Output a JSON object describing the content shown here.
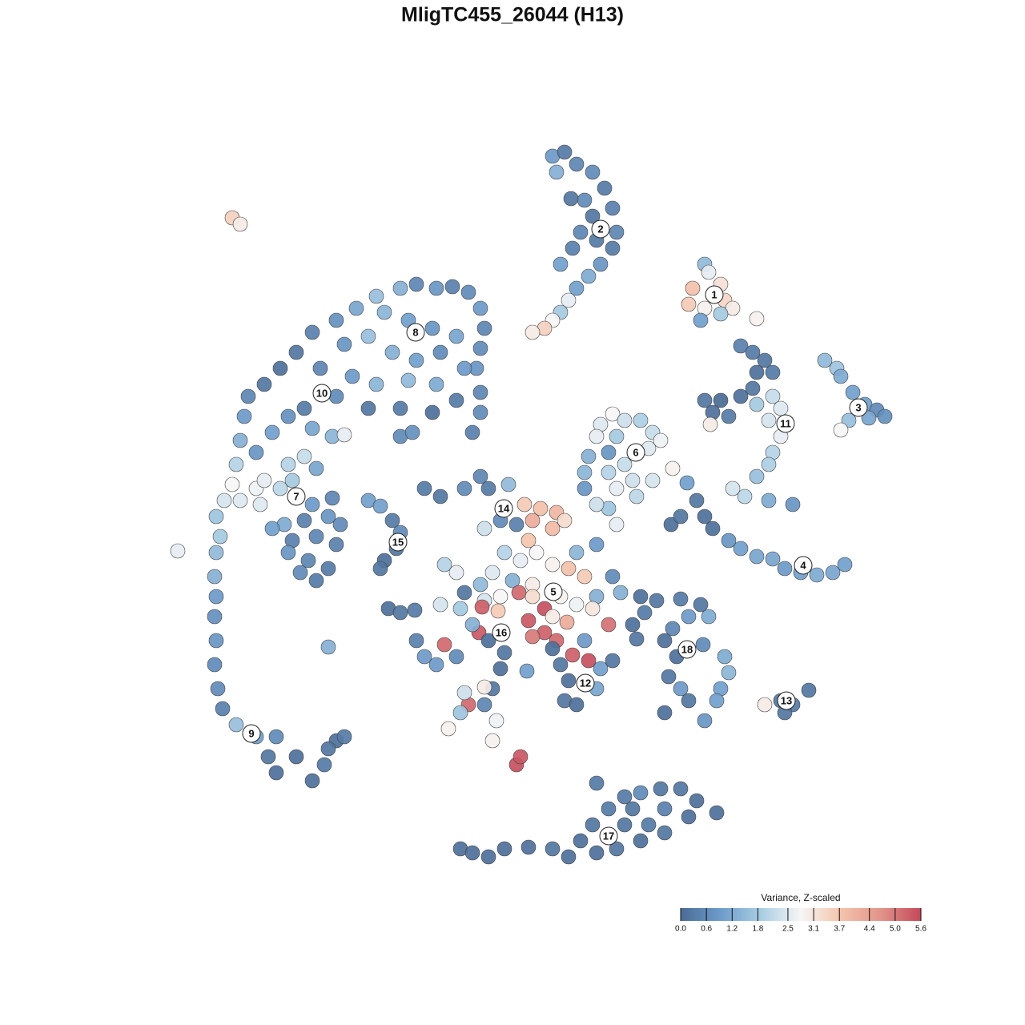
{
  "chart_data": {
    "type": "scatter",
    "title": "MligTC455_26044 (H13)",
    "xlim": [
      -60,
      60
    ],
    "ylim": [
      -60,
      60
    ],
    "series": [
      {
        "x": [
          5,
          6.5,
          8,
          10,
          11.5,
          12.5,
          13,
          12.5,
          11,
          9.5,
          8,
          7,
          6,
          5,
          4,
          2.5,
          10,
          8.5,
          7.5,
          6,
          9,
          10.5,
          5.5,
          7.3,
          24,
          24.5,
          26,
          22.5,
          22,
          24,
          26.5,
          27.5,
          23.5,
          26,
          30.5,
          39,
          40.5,
          41,
          42.5,
          44,
          45.5,
          46.5,
          44.5,
          42,
          41,
          28.5,
          30,
          31.5,
          32.5,
          30.5,
          30,
          28.5,
          26,
          24,
          25,
          27,
          30.5,
          32.5,
          33.5,
          32,
          33.5,
          32.5,
          32,
          30.5,
          27.5,
          29,
          32,
          35,
          24.7,
          12.5,
          11,
          14,
          16,
          17.5,
          10.5,
          13,
          12,
          9.5,
          17,
          18.5,
          14,
          20,
          9,
          12,
          15,
          17.5,
          13,
          15.5,
          12,
          10.5,
          13,
          9,
          21.8,
          23,
          24,
          25,
          27,
          28.5,
          30.5,
          32.5,
          34,
          36,
          38,
          40,
          41.5,
          19.8,
          21,
          -14,
          -12,
          -9.5,
          -7.5,
          -5.5,
          -4,
          -3.5,
          -4,
          -4.5,
          -4,
          -4,
          -5,
          -17,
          -19.5,
          -22,
          -25,
          -27,
          -29,
          -31,
          -33,
          -33.5,
          -34,
          -34.5,
          -35,
          -36,
          -34,
          -32,
          -31.5,
          -16,
          -13,
          -10,
          -7,
          -18,
          -21,
          -15,
          -12,
          -9,
          -6,
          -24,
          -20,
          -17,
          -13,
          -9.5,
          -22,
          -18,
          -14,
          -10,
          -7,
          -26,
          -28,
          -30,
          -25,
          -32,
          -28,
          -26,
          -24.5,
          -22.5,
          -21,
          -14,
          -12.5,
          -29,
          -31,
          -27.5,
          -25,
          -23,
          -21.5,
          -26,
          -28.5,
          -30,
          -27.5,
          -24.5,
          -22,
          -28,
          -25.5,
          -23,
          -26.5,
          -24.5,
          -22.5,
          -37,
          -36.5,
          -37,
          -41.8,
          -37.2,
          -37,
          -37.2,
          -37,
          -37.2,
          -36.8,
          -36.2,
          -34.5,
          -32,
          -29.5,
          -30.5,
          -29.5,
          -27,
          -25,
          -23.5,
          -22,
          -21,
          -23,
          -23,
          -18,
          -16.5,
          -15,
          -14,
          -14.5,
          -16,
          -16.5,
          -11,
          -9,
          -6,
          -4,
          -3,
          -0.5,
          1.5,
          3.5,
          5.5,
          2.5,
          5,
          6.5,
          -3.5,
          -1.5,
          0.5,
          2,
          -1,
          1,
          3,
          5,
          7,
          8,
          10.5,
          9,
          -2.5,
          0,
          2.5,
          6,
          8,
          10.5,
          12.5,
          13.5,
          -4,
          -6,
          -8.5,
          -7,
          -9,
          -6.5,
          -3.5,
          -1.5,
          0.8,
          2.5,
          4,
          5,
          6.8,
          -3.8,
          -1.8,
          2,
          4,
          5.5,
          2.5,
          7.5,
          9.5,
          12,
          10,
          -4.2,
          -8.5,
          -12,
          -11,
          -9.5,
          -7,
          -5,
          -3,
          -1,
          -1.5,
          -2.5,
          -3.5,
          -5.5,
          -6.5,
          -8,
          -2,
          -2.5,
          0.5,
          1,
          -6,
          -3.5,
          1.8,
          -15.5,
          -14,
          -12.2,
          5,
          6,
          7,
          6.5,
          8,
          10.5,
          11,
          9,
          12.5,
          15.5,
          15,
          16,
          18,
          21,
          23.5,
          22,
          24.5,
          20,
          19,
          20.5,
          19.5,
          21,
          22,
          19,
          24,
          26.5,
          27,
          26,
          25.5,
          23.8,
          16.5,
          31.5,
          33.5,
          35,
          37,
          34,
          10.5,
          -6.5,
          -5,
          -3,
          -1,
          2,
          5,
          7,
          8.5,
          10,
          12,
          14,
          16,
          18.5,
          21,
          23,
          25.5,
          19,
          17,
          14,
          16,
          19,
          13,
          10.5,
          15,
          22,
          -35,
          -34
        ],
        "y": [
          44.5,
          45,
          43.5,
          42.5,
          40.5,
          38,
          35,
          33,
          31,
          29.5,
          28,
          26.5,
          25,
          24,
          23,
          22.5,
          37,
          35,
          33,
          31,
          39,
          34,
          42.5,
          39.2,
          31,
          30,
          28.5,
          28,
          26,
          25.5,
          26.5,
          25.5,
          24,
          24.8,
          24.2,
          19,
          18,
          17,
          15,
          13.5,
          12.8,
          12,
          11.8,
          11.5,
          10.3,
          20.8,
          20,
          19,
          17.5,
          17.5,
          15.5,
          14.5,
          14,
          14,
          12.5,
          12,
          13.5,
          14.5,
          13,
          11.5,
          9.5,
          7.5,
          6,
          4.5,
          3,
          2,
          1.5,
          1,
          11,
          12.3,
          11,
          11.5,
          11.5,
          10,
          9.5,
          9.5,
          7.5,
          7,
          8,
          9,
          6,
          5.5,
          5,
          5,
          4,
          4,
          3,
          2,
          0.5,
          1,
          -1.5,
          3,
          3.7,
          1.5,
          -0.5,
          -2,
          -3.5,
          -4.5,
          -5.5,
          -5.8,
          -7,
          -7.5,
          -7.8,
          -7.5,
          -6.5,
          -1.5,
          -0.5,
          28,
          28.5,
          28,
          28.2,
          27.5,
          25.5,
          23,
          20.5,
          18,
          15,
          12.5,
          10,
          27,
          25.5,
          24,
          22.5,
          20,
          18,
          16,
          14.5,
          12,
          9,
          6,
          3.5,
          1.5,
          1.5,
          3,
          1,
          25,
          24,
          23,
          22,
          22,
          21,
          20,
          19,
          20,
          18,
          18,
          17,
          16,
          16.5,
          16,
          14.5,
          13,
          13,
          12.5,
          14,
          13,
          12,
          10,
          10.5,
          7.5,
          6,
          7,
          5.5,
          9.5,
          9.7,
          9.5,
          10,
          3,
          4,
          4,
          1,
          -0.5,
          -1.5,
          -1,
          -1.5,
          -2,
          -3.5,
          -3,
          -4,
          -5,
          -6,
          -7,
          -7.5,
          -8.5,
          1.8,
          -0.5,
          -3,
          -5,
          -4.8,
          -8,
          -10.5,
          -13,
          -16,
          -19,
          -22,
          -24.5,
          -26.5,
          -28,
          -28,
          -30.5,
          -32.5,
          -30.5,
          -33.5,
          -31.5,
          -28.5,
          -28,
          -29.5,
          -16.8,
          1.5,
          0.8,
          -1,
          -2.5,
          -4.5,
          -6,
          -7,
          3,
          2,
          3,
          4.5,
          3,
          3.5,
          1,
          0.5,
          0,
          -1,
          -2,
          -1,
          -2,
          -1,
          -1.5,
          -3.5,
          -5,
          -6,
          -5,
          -6.5,
          -7,
          -5,
          -4,
          -8,
          -7.5,
          -8.5,
          -9,
          -10.5,
          -11.5,
          -10.5,
          -8,
          -10,
          -9,
          -10,
          -6.5,
          -7.5,
          -11.5,
          -12,
          -11,
          -10.5,
          -10,
          -10.5,
          -12,
          -13,
          -13.7,
          -11.8,
          -12.3,
          -13.5,
          -15,
          -16,
          -15.5,
          -17.8,
          -18.5,
          -14,
          -12,
          -15,
          -16.5,
          -16,
          -18,
          -19,
          -18,
          -14,
          -16,
          -17.5,
          -19.5,
          -22,
          -24,
          -24,
          -25,
          -27,
          -26,
          -28.5,
          -31.5,
          -30.5,
          -22.5,
          -21.8,
          -19.8,
          -12,
          -12.5,
          -12.2,
          -17,
          -19,
          -21,
          -23.5,
          -24,
          -22,
          -19.5,
          -16,
          -18.5,
          -15.8,
          -14,
          -10.5,
          -11,
          -10.8,
          -11.5,
          -13,
          -13,
          -14.5,
          -16,
          -18,
          -20.5,
          -22,
          -23.5,
          -25,
          -26,
          -18,
          -20,
          -22,
          -23.5,
          -16.5,
          -12.5,
          -24,
          -23.5,
          -24,
          -22.2,
          -25,
          -33.8,
          -42,
          -42.5,
          -43,
          -42,
          -41.8,
          -42,
          -43,
          -41,
          -39,
          -37,
          -35.5,
          -35,
          -34.5,
          -34.5,
          -36,
          -37.5,
          -37,
          -39,
          -39,
          -41,
          -40,
          -42,
          -42.5,
          -37,
          -38,
          36.8,
          36
        ],
        "values": [
          0.9,
          0.3,
          0.5,
          0.6,
          0.3,
          0.4,
          0.5,
          0.3,
          0.8,
          1.2,
          1.0,
          2.6,
          1.8,
          2.8,
          3.5,
          3.0,
          0.2,
          0.5,
          0.4,
          1.0,
          0.6,
          0.3,
          1.3,
          0.2,
          1.5,
          2.6,
          3.2,
          3.8,
          3.6,
          2.9,
          3.4,
          3.0,
          1.0,
          1.8,
          2.9,
          1.5,
          1.7,
          1.2,
          1.0,
          1.0,
          0.6,
          0.7,
          1.1,
          1.6,
          2.8,
          0.4,
          0.3,
          0.2,
          0.3,
          0.1,
          0.2,
          0.1,
          0.0,
          0.2,
          0.1,
          0.3,
          1.8,
          2.2,
          2.5,
          2.4,
          2.6,
          2.0,
          1.9,
          1.6,
          2.4,
          2.1,
          1.2,
          0.8,
          3.0,
          2.8,
          2.5,
          2.3,
          1.9,
          2.2,
          2.6,
          1.8,
          0.8,
          1.3,
          2.5,
          2.7,
          2.2,
          2.9,
          1.4,
          2.0,
          2.3,
          2.4,
          2.6,
          2.1,
          1.7,
          2.3,
          2.6,
          0.8,
          1.0,
          0.2,
          0.1,
          0.1,
          0.8,
          1.0,
          1.1,
          1.1,
          0.9,
          1.0,
          1.2,
          1.1,
          1.0,
          0.1,
          0.2,
          1.3,
          0.5,
          0.8,
          0.4,
          0.6,
          0.9,
          0.5,
          0.6,
          0.8,
          0.5,
          0.6,
          0.4,
          1.6,
          1.1,
          0.7,
          0.4,
          0.2,
          0.1,
          0.2,
          0.5,
          0.9,
          1.3,
          2.0,
          2.8,
          2.4,
          2.5,
          2.7,
          2.5,
          1.4,
          1.0,
          0.8,
          1.1,
          1.6,
          0.8,
          1.3,
          1.0,
          0.6,
          0.9,
          0.5,
          0.9,
          1.4,
          1.5,
          1.2,
          0.6,
          0.2,
          0.3,
          0.1,
          0.3,
          0.3,
          0.7,
          1.0,
          1.1,
          0.8,
          2.0,
          2.2,
          1.1,
          1.4,
          2.6,
          0.6,
          0.7,
          2.1,
          2.6,
          1.8,
          0.9,
          0.8,
          0.6,
          0.4,
          1.2,
          1.0,
          0.4,
          0.5,
          0.4,
          0.8,
          0.5,
          0.3,
          0.6,
          0.3,
          0.5,
          1.7,
          1.8,
          1.5,
          2.6,
          1.3,
          0.9,
          0.7,
          0.8,
          0.6,
          0.6,
          0.4,
          1.6,
          1.0,
          0.6,
          0.2,
          0.1,
          0.1,
          0.1,
          0.3,
          0.1,
          0.3,
          0.2,
          1.3,
          1.0,
          1.0,
          0.3,
          0.6,
          0.2,
          0.1,
          0.2,
          0.3,
          0.2,
          0.6,
          0.5,
          0.3,
          1.5,
          3.6,
          3.8,
          4.0,
          4.2,
          3.9,
          3.3,
          2.3,
          0.6,
          0.4,
          3.7,
          2.0,
          2.6,
          2.8,
          2.9,
          3.8,
          1.4,
          0.9,
          3.6,
          2.5,
          1.3,
          3.0,
          2.9,
          2.7,
          1.3,
          0.6,
          1.3,
          1.5,
          0.2,
          2.0,
          2.6,
          2.4,
          1.8,
          2.4,
          2.8,
          5.2,
          3.3,
          5.5,
          3.0,
          4.2,
          5.3,
          3.6,
          5.4,
          5.3,
          5.2,
          5.0,
          5.3,
          5.5,
          5.1,
          3.1,
          5.4,
          5.2,
          0.4,
          0.9,
          0.9,
          0.6,
          1.3,
          0.1,
          0.2,
          0.1,
          0.2,
          0.5,
          5.2,
          1.7,
          2.9,
          2.7,
          2.9,
          5.5,
          5.4,
          2.3,
          3.0,
          1.0,
          0.1,
          0.2,
          0.3,
          0.1,
          0.2,
          0.1,
          0.2,
          0.1,
          1.1,
          1.0,
          0.9,
          0.2,
          0.2,
          0.1,
          0.1,
          0.2,
          0.3,
          0.2,
          0.9,
          1.2,
          0.5,
          0.1,
          0.1,
          0.2,
          0.9,
          0.2,
          0.1,
          0.8,
          1.2,
          1.4,
          1.0,
          1.0,
          0.6,
          0.3,
          3.0,
          0.2,
          0.3,
          0.2,
          0.2,
          0.3,
          0.1,
          0.1,
          0.1,
          0.1,
          0.1,
          0.2,
          0.1,
          0.1,
          0.2,
          0.3,
          0.3,
          0.6,
          0.2,
          0.2,
          0.1,
          0.1,
          0.4,
          0.3,
          0.2,
          0.1,
          0.2,
          0.2,
          0.1,
          0.2,
          0.1,
          3.5,
          3.0
        ]
      }
    ],
    "cluster_labels": [
      {
        "label": "1",
        "x": 25.2,
        "y": 27.2
      },
      {
        "label": "2",
        "x": 11,
        "y": 35.4
      },
      {
        "label": "3",
        "x": 43.2,
        "y": 13.1
      },
      {
        "label": "4",
        "x": 36.3,
        "y": -6.6
      },
      {
        "label": "5",
        "x": 5.1,
        "y": -9.9
      },
      {
        "label": "6",
        "x": 15.4,
        "y": 7.5
      },
      {
        "label": "7",
        "x": -27,
        "y": 2
      },
      {
        "label": "8",
        "x": -12.1,
        "y": 22.5
      },
      {
        "label": "9",
        "x": -32.6,
        "y": -27.6
      },
      {
        "label": "10",
        "x": -23.8,
        "y": 14.9
      },
      {
        "label": "11",
        "x": 34.1,
        "y": 11.1
      },
      {
        "label": "12",
        "x": 9.1,
        "y": -21.3
      },
      {
        "label": "13",
        "x": 34.2,
        "y": -23.5
      },
      {
        "label": "14",
        "x": -1.1,
        "y": 0.5
      },
      {
        "label": "15",
        "x": -14.3,
        "y": -3.7
      },
      {
        "label": "16",
        "x": -1.4,
        "y": -15
      },
      {
        "label": "17",
        "x": 12,
        "y": -40.4
      },
      {
        "label": "18",
        "x": 21.8,
        "y": -17.1
      }
    ],
    "colorbar": {
      "title": "Variance, Z-scaled",
      "clim": [
        0,
        5.6
      ],
      "colors": [
        "#4a6b95",
        "#6d9ccb",
        "#a9cde3",
        "#f6f6f6",
        "#f4c3ab",
        "#e2948a",
        "#c4485a"
      ],
      "ticks": [
        {
          "value": 0,
          "label": "0.0"
        },
        0.6,
        1.2,
        1.8,
        2.5,
        3.1,
        3.7,
        4.4,
        {
          "value": 5,
          "label": "5.0"
        },
        5.6
      ]
    }
  }
}
